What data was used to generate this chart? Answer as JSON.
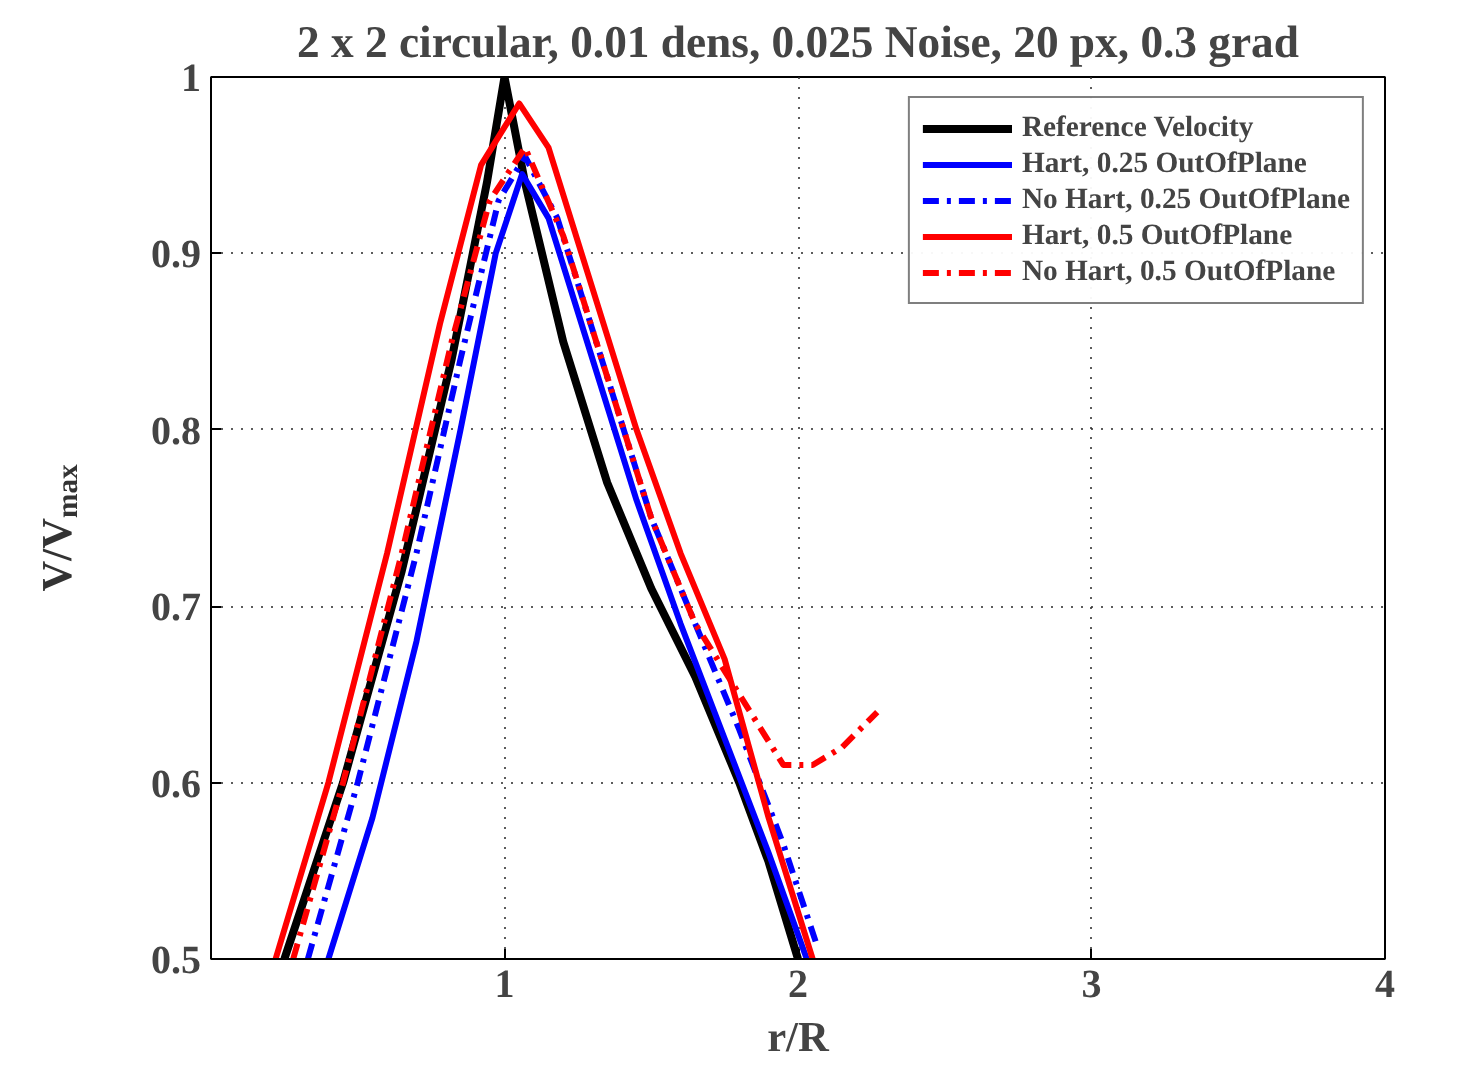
{
  "chart_data": {
    "type": "line",
    "title": "2 x 2 circular, 0.01 dens, 0.025 Noise, 20 px, 0.3 grad",
    "xlabel": "r/R",
    "ylabel": "V/V$_{max}$",
    "xlim": [
      0,
      4
    ],
    "xticks": [
      1,
      2,
      3,
      4
    ],
    "ylim": [
      0.5,
      1
    ],
    "yticks": [
      0.5,
      0.6,
      0.7,
      0.8,
      0.9,
      1
    ],
    "grid": true,
    "legend": "top right",
    "series": [
      {
        "name": "Reference Velocity",
        "color": "#000000",
        "line_style": "solid",
        "x": [
          0.25,
          0.45,
          0.65,
          0.82,
          0.94,
          1.0,
          1.07,
          1.2,
          1.35,
          1.5,
          1.65,
          1.8,
          1.9,
          2.0
        ],
        "values": [
          0.5,
          0.6,
          0.72,
          0.84,
          0.94,
          1.0,
          0.94,
          0.85,
          0.77,
          0.71,
          0.66,
          0.6,
          0.555,
          0.5
        ]
      },
      {
        "name": "Hart, 0.25 OutOfPlane",
        "color": "#0000ff",
        "line_style": "solid",
        "x": [
          0.4,
          0.55,
          0.7,
          0.85,
          0.97,
          1.06,
          1.15,
          1.3,
          1.45,
          1.6,
          1.75,
          1.9,
          2.03
        ],
        "values": [
          0.5,
          0.58,
          0.68,
          0.8,
          0.9,
          0.945,
          0.92,
          0.84,
          0.76,
          0.69,
          0.625,
          0.56,
          0.5
        ]
      },
      {
        "name": "No Hart, 0.25 OutOfPlane",
        "color": "#0000ff",
        "line_style": "dashdot",
        "x": [
          0.33,
          0.5,
          0.7,
          0.85,
          0.98,
          1.07,
          1.18,
          1.35,
          1.5,
          1.65,
          1.8,
          1.95,
          2.06
        ],
        "values": [
          0.5,
          0.6,
          0.73,
          0.84,
          0.93,
          0.955,
          0.92,
          0.83,
          0.75,
          0.69,
          0.63,
          0.565,
          0.51
        ]
      },
      {
        "name": "Hart, 0.5 OutOfPlane",
        "color": "#ff0000",
        "line_style": "solid",
        "x": [
          0.22,
          0.4,
          0.6,
          0.78,
          0.92,
          1.05,
          1.15,
          1.3,
          1.45,
          1.6,
          1.75,
          1.9,
          2.05
        ],
        "values": [
          0.5,
          0.6,
          0.73,
          0.86,
          0.95,
          0.985,
          0.96,
          0.88,
          0.8,
          0.73,
          0.67,
          0.58,
          0.5
        ]
      },
      {
        "name": "No Hart, 0.5 OutOfPlane",
        "color": "#ff0000",
        "line_style": "dashdot",
        "x": [
          0.28,
          0.45,
          0.65,
          0.82,
          0.95,
          1.07,
          1.2,
          1.35,
          1.5,
          1.65,
          1.8,
          1.95,
          2.05,
          2.15,
          2.27
        ],
        "values": [
          0.5,
          0.6,
          0.73,
          0.85,
          0.93,
          0.96,
          0.91,
          0.83,
          0.75,
          0.69,
          0.65,
          0.61,
          0.61,
          0.62,
          0.64
        ]
      }
    ]
  }
}
